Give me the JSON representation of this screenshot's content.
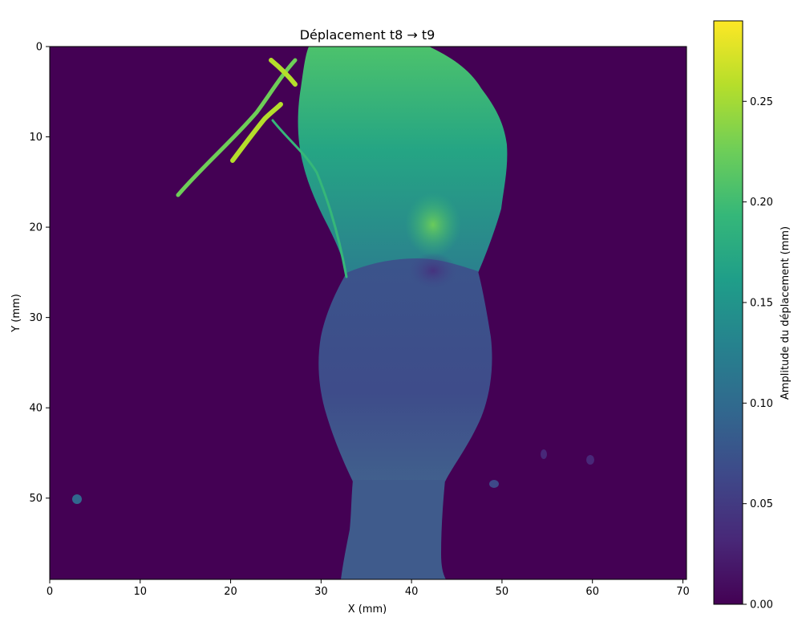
{
  "chart_data": {
    "type": "heatmap",
    "title": "Déplacement t8 → t9",
    "xlabel": "X (mm)",
    "ylabel": "Y (mm)",
    "xlim": [
      0,
      70.4
    ],
    "ylim": [
      59,
      0
    ],
    "x_ticks": [
      "0",
      "10",
      "20",
      "30",
      "40",
      "50",
      "60",
      "70"
    ],
    "x_tick_values": [
      0,
      10,
      20,
      30,
      40,
      50,
      60,
      70
    ],
    "y_ticks": [
      "0",
      "10",
      "20",
      "30",
      "40",
      "50"
    ],
    "y_tick_values": [
      0,
      10,
      20,
      30,
      40,
      50
    ],
    "colorbar": {
      "label": "Amplitude du déplacement (mm)",
      "range": [
        0.0,
        0.29
      ],
      "ticks": [
        "0.00",
        "0.05",
        "0.10",
        "0.15",
        "0.20",
        "0.25"
      ],
      "tick_values": [
        0.0,
        0.05,
        0.1,
        0.15,
        0.2,
        0.25
      ],
      "colormap": "viridis"
    },
    "grid": false,
    "background_value": 0.0,
    "regions": [
      {
        "name": "upper body",
        "approx_value": 0.17
      },
      {
        "name": "hot spot near (42, 19.5)",
        "approx_value": 0.22
      },
      {
        "name": "low spot near (42, 24.5)",
        "approx_value": 0.04
      },
      {
        "name": "middle body",
        "approx_value": 0.07
      },
      {
        "name": "lower neck",
        "approx_value": 0.08
      },
      {
        "name": "thin upper-left branches",
        "approx_value": 0.26
      }
    ]
  },
  "colors": {
    "viridis": [
      "#440154",
      "#482878",
      "#3e4989",
      "#31688e",
      "#26828e",
      "#1f9e89",
      "#35b779",
      "#6ece58",
      "#b5de2b",
      "#fde725"
    ]
  }
}
